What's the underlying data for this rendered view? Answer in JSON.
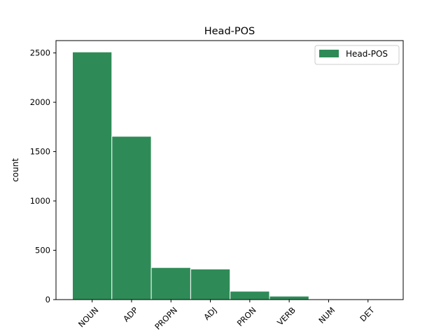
{
  "chart_data": {
    "type": "bar",
    "title": "Head-POS",
    "xlabel": "",
    "ylabel": "count",
    "categories": [
      "NOUN",
      "ADP",
      "PROPN",
      "ADJ",
      "PRON",
      "VERB",
      "NUM",
      "DET"
    ],
    "series": [
      {
        "name": "Head-POS",
        "values": [
          2510,
          1655,
          325,
          310,
          85,
          35,
          3,
          2
        ]
      }
    ],
    "ylim": [
      0,
      2625
    ],
    "yticks": [
      0,
      500,
      1000,
      1500,
      2000,
      2500
    ],
    "grid": false,
    "legend": "top-right",
    "bar_color": "#2e8b57",
    "bar_edge_color": "#ffffff",
    "x_tick_rotation": 45
  }
}
